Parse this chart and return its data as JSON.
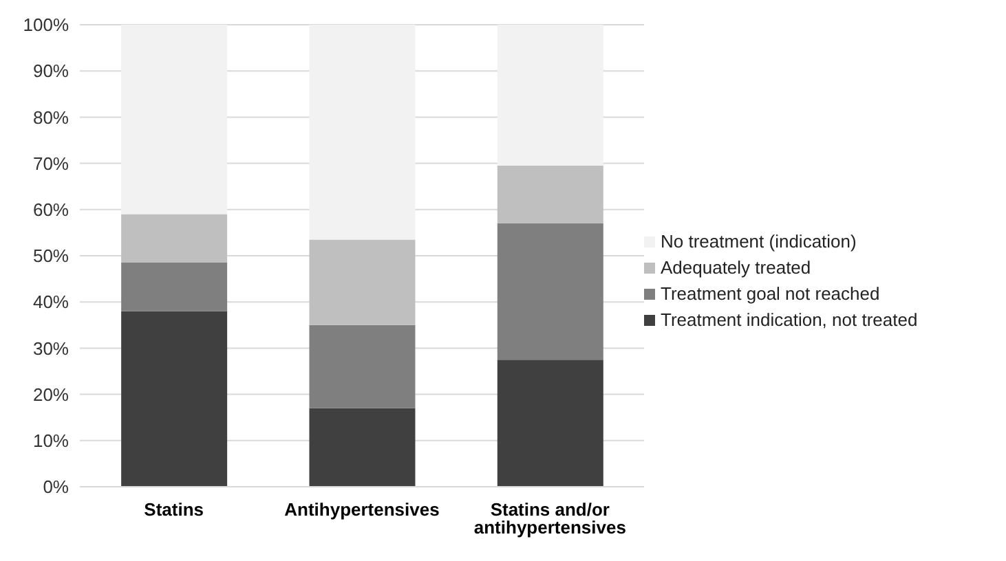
{
  "chart_data": {
    "type": "bar",
    "stacked": true,
    "categories": [
      "Statins",
      "Antihypertensives",
      "Statins and/or antihypertensives"
    ],
    "series": [
      {
        "name": "Treatment indication, not treated",
        "color": "#404040",
        "values": [
          38,
          17,
          27.5
        ]
      },
      {
        "name": "Treatment goal not reached",
        "color": "#7f7f7f",
        "values": [
          10.5,
          18,
          29.5
        ]
      },
      {
        "name": "Adequately treated",
        "color": "#bfbfbf",
        "values": [
          10.5,
          18.5,
          12.5
        ]
      },
      {
        "name": "No treatment (indication)",
        "color": "#f2f2f2",
        "values": [
          41,
          46.5,
          30.5
        ]
      }
    ],
    "ylim": [
      0,
      100
    ],
    "yticks": [
      {
        "value": 0,
        "label": "0%"
      },
      {
        "value": 10,
        "label": "10%"
      },
      {
        "value": 20,
        "label": "20%"
      },
      {
        "value": 30,
        "label": "30%"
      },
      {
        "value": 40,
        "label": "40%"
      },
      {
        "value": 50,
        "label": "50%"
      },
      {
        "value": 60,
        "label": "60%"
      },
      {
        "value": 70,
        "label": "70%"
      },
      {
        "value": 80,
        "label": "80%"
      },
      {
        "value": 90,
        "label": "90%"
      },
      {
        "value": 100,
        "label": "100%"
      }
    ],
    "grid": "y",
    "legend": "right"
  }
}
